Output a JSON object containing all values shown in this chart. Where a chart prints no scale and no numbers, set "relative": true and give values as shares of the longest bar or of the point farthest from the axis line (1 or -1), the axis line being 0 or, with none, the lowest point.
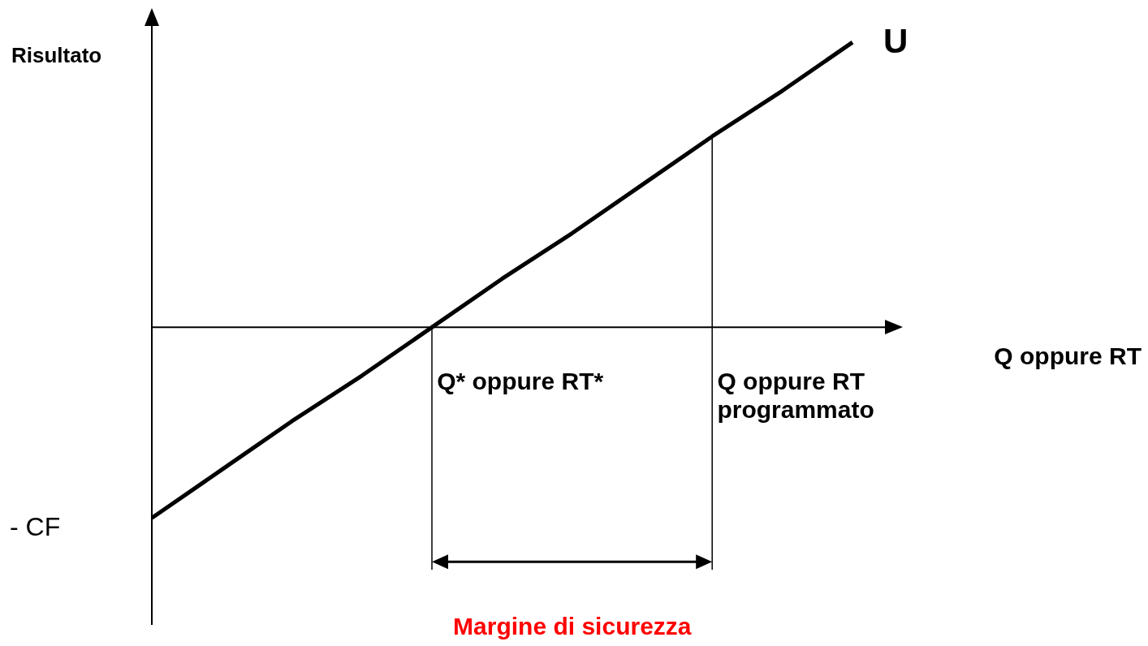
{
  "chart_data": {
    "type": "line",
    "relative": true,
    "xlabel": "Q oppure RT",
    "ylabel": "Risultato",
    "categories": [
      null,
      null,
      null,
      null,
      null,
      null,
      null,
      null,
      null,
      null,
      null
    ],
    "series": [
      {
        "color": "#000000",
        "values": [
          -0.67,
          -0.5,
          -0.33,
          -0.17,
          0,
          0.17,
          0.33,
          0.5,
          0.67,
          0.83,
          1
        ]
      }
    ],
    "annotations": [
      "- CF",
      "U",
      "Q* oppure RT*",
      "Q oppure RT programmato",
      "Margine di sicurezza"
    ],
    "marker": "none",
    "line_style": "solid"
  }
}
